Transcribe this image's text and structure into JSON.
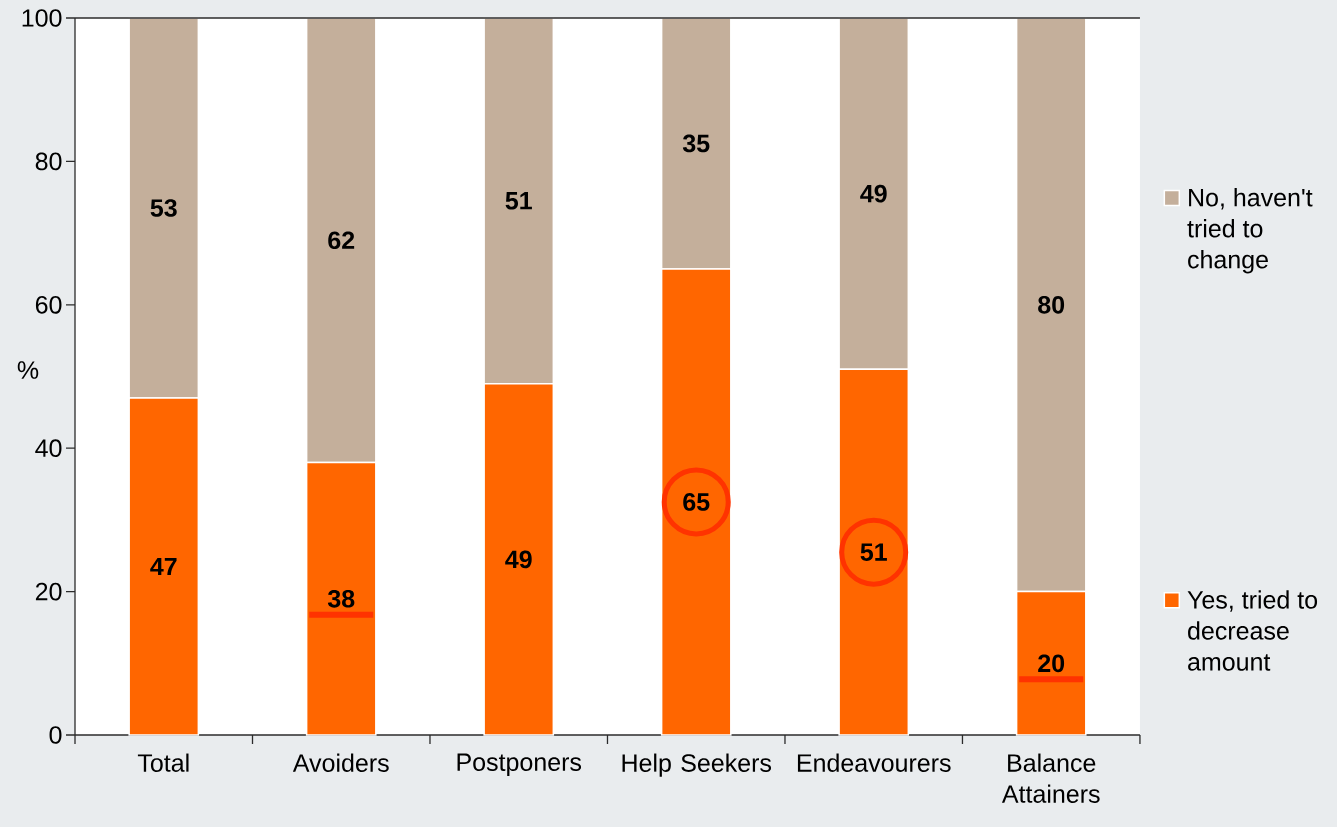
{
  "chart_data": {
    "type": "bar",
    "stacked": true,
    "ylabel": "%",
    "categories": [
      "Total",
      "Avoiders",
      "Postponers",
      "Help Seekers",
      "Endeavourers",
      "Balance Attainers"
    ],
    "series": [
      {
        "name": "Yes, tried to decrease amount",
        "color": "#ff6600",
        "values": [
          47,
          38,
          49,
          65,
          51,
          20
        ]
      },
      {
        "name": "No, haven't tried to change",
        "color": "#c4af9b",
        "values": [
          53,
          62,
          51,
          35,
          49,
          80
        ]
      }
    ],
    "ylim": [
      0,
      100
    ],
    "yticks": [
      0,
      20,
      40,
      60,
      80,
      100
    ],
    "data_labels": true,
    "legend": "right"
  }
}
